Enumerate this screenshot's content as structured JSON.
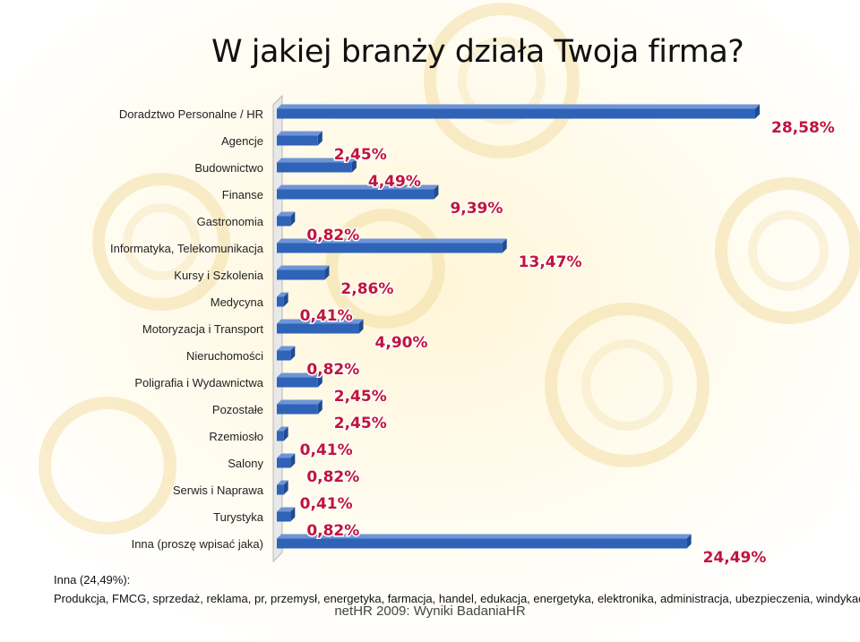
{
  "title": "W jakiej branży działa Twoja firma?",
  "chart_data": {
    "type": "bar",
    "orientation": "horizontal",
    "categories": [
      "Doradztwo Personalne / HR",
      "Agencje",
      "Budownictwo",
      "Finanse",
      "Gastronomia",
      "Informatyka, Telekomunikacja",
      "Kursy i Szkolenia",
      "Medycyna",
      "Motoryzacja i Transport",
      "Nieruchomości",
      "Poligrafia i Wydawnictwa",
      "Pozostałe",
      "Rzemiosło",
      "Salony",
      "Serwis i Naprawa",
      "Turystyka",
      "Inna (proszę wpisać jaka)"
    ],
    "values": [
      28.58,
      2.45,
      4.49,
      9.39,
      0.82,
      13.47,
      2.86,
      0.41,
      4.9,
      0.82,
      2.45,
      2.45,
      0.41,
      0.82,
      0.41,
      0.82,
      24.49
    ],
    "value_labels": [
      "28,58%",
      "2,45%",
      "4,49%",
      "9,39%",
      "0,82%",
      "13,47%",
      "2,86%",
      "0,41%",
      "4,90%",
      "0,82%",
      "2,45%",
      "2,45%",
      "0,41%",
      "0,82%",
      "0,41%",
      "0,82%",
      "24,49%"
    ],
    "xlim": [
      0,
      28.58
    ],
    "grid": false,
    "legend": "none",
    "bar_color": "#2e63b8",
    "label_color": "#c0143c"
  },
  "note": {
    "title": "Inna (24,49%):",
    "body": "Produkcja, FMCG, sprzedaż, reklama, pr, przemysł, energetyka, farmacja, handel, edukacja, energetyka, elektronika, administracja, ubezpieczenia, windykacja"
  },
  "footer": "netHR 2009: Wyniki BadaniaHR"
}
